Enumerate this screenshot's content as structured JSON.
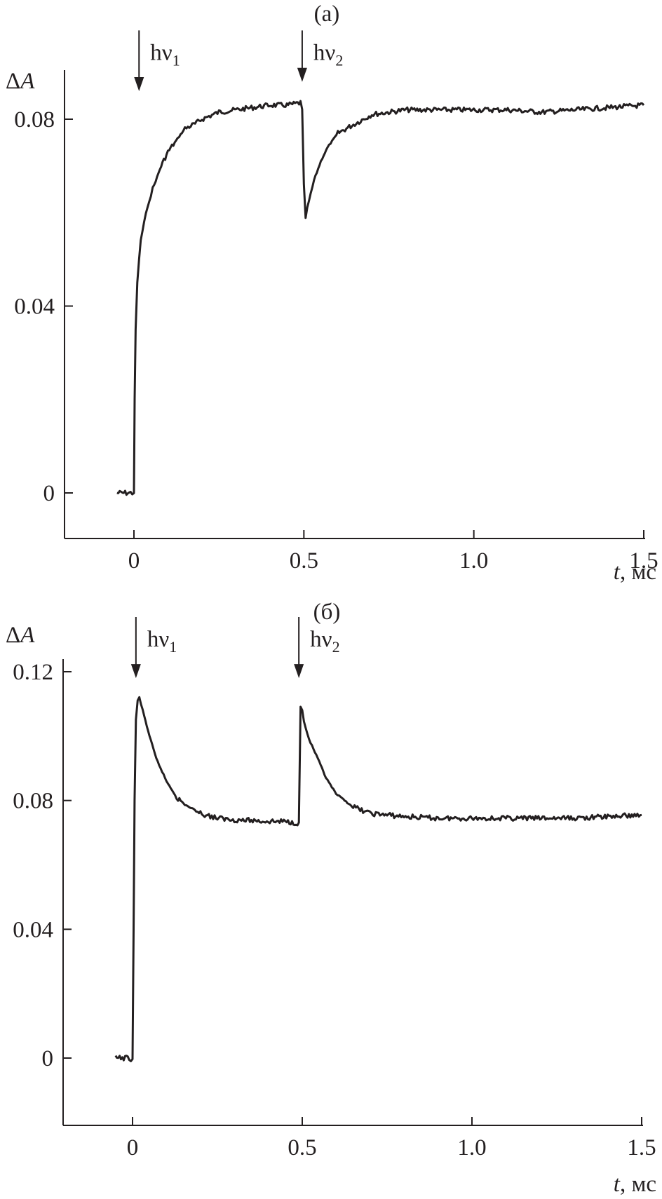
{
  "chart_data": [
    {
      "type": "line",
      "panel_label": "(a)",
      "ylabel": "ΔA",
      "xlabel": "t, мс",
      "xlim": [
        -0.2,
        1.5
      ],
      "ylim": [
        -0.01,
        0.09
      ],
      "xticks": [
        0,
        0.5,
        1.0,
        1.5
      ],
      "xtick_labels": [
        "0",
        "0.5",
        "1.0",
        "1.5"
      ],
      "yticks": [
        0,
        0.04,
        0.08
      ],
      "ytick_labels": [
        "0",
        "0.04",
        "0.08"
      ],
      "grid": false,
      "annotations": [
        {
          "text": "hν",
          "subscript": "1",
          "x": 0.015,
          "y_from": 0.099,
          "y_to": 0.086
        },
        {
          "text": "hν",
          "subscript": "2",
          "x": 0.495,
          "y_from": 0.099,
          "y_to": 0.088
        }
      ],
      "series": [
        {
          "x": [
            -0.05,
            -0.03,
            -0.01,
            0.0,
            0.002,
            0.005,
            0.01,
            0.015,
            0.02,
            0.03,
            0.04,
            0.05,
            0.06,
            0.08,
            0.1,
            0.12,
            0.15,
            0.18,
            0.2,
            0.25,
            0.3,
            0.35,
            0.4,
            0.45,
            0.49,
            0.495,
            0.5,
            0.505,
            0.51,
            0.52,
            0.53,
            0.55,
            0.57,
            0.6,
            0.65,
            0.7,
            0.75,
            0.8,
            0.9,
            1.0,
            1.1,
            1.2,
            1.3,
            1.4,
            1.5
          ],
          "y": [
            0.0,
            0.0,
            0.0,
            0.0,
            0.02,
            0.035,
            0.045,
            0.05,
            0.054,
            0.058,
            0.061,
            0.064,
            0.066,
            0.07,
            0.073,
            0.075,
            0.078,
            0.079,
            0.08,
            0.0815,
            0.082,
            0.0825,
            0.083,
            0.083,
            0.0835,
            0.082,
            0.066,
            0.059,
            0.061,
            0.064,
            0.067,
            0.071,
            0.074,
            0.077,
            0.079,
            0.081,
            0.0815,
            0.082,
            0.082,
            0.082,
            0.082,
            0.0815,
            0.082,
            0.0825,
            0.083
          ]
        }
      ]
    },
    {
      "type": "line",
      "panel_label": "(б)",
      "ylabel": "ΔA",
      "xlabel": "t, мс",
      "xlim": [
        -0.2,
        1.5
      ],
      "ylim": [
        -0.015,
        0.125
      ],
      "xticks": [
        0,
        0.5,
        1.0,
        1.5
      ],
      "xtick_labels": [
        "0",
        "0.5",
        "1.0",
        "1.5"
      ],
      "yticks": [
        0,
        0.04,
        0.08,
        0.12
      ],
      "ytick_labels": [
        "0",
        "0.04",
        "0.08",
        "0.12"
      ],
      "grid": false,
      "annotations": [
        {
          "text": "hν",
          "subscript": "1",
          "x": 0.01,
          "y_from": 0.137,
          "y_to": 0.118
        },
        {
          "text": "hν",
          "subscript": "2",
          "x": 0.49,
          "y_from": 0.137,
          "y_to": 0.118
        }
      ],
      "series": [
        {
          "x": [
            -0.05,
            -0.03,
            -0.01,
            0.0,
            0.003,
            0.006,
            0.01,
            0.015,
            0.02,
            0.03,
            0.05,
            0.07,
            0.1,
            0.13,
            0.15,
            0.2,
            0.25,
            0.3,
            0.35,
            0.4,
            0.45,
            0.49,
            0.495,
            0.5,
            0.505,
            0.51,
            0.52,
            0.55,
            0.57,
            0.6,
            0.65,
            0.7,
            0.8,
            0.9,
            1.0,
            1.1,
            1.2,
            1.3,
            1.4,
            1.5
          ],
          "y": [
            0.0,
            0.0,
            0.0,
            -0.0005,
            0.04,
            0.08,
            0.105,
            0.111,
            0.112,
            0.108,
            0.1,
            0.093,
            0.086,
            0.081,
            0.079,
            0.076,
            0.0745,
            0.074,
            0.0738,
            0.0735,
            0.0735,
            0.073,
            0.109,
            0.108,
            0.105,
            0.1025,
            0.099,
            0.092,
            0.087,
            0.082,
            0.078,
            0.076,
            0.075,
            0.0745,
            0.0745,
            0.0745,
            0.0745,
            0.0745,
            0.075,
            0.0755
          ]
        }
      ]
    }
  ]
}
